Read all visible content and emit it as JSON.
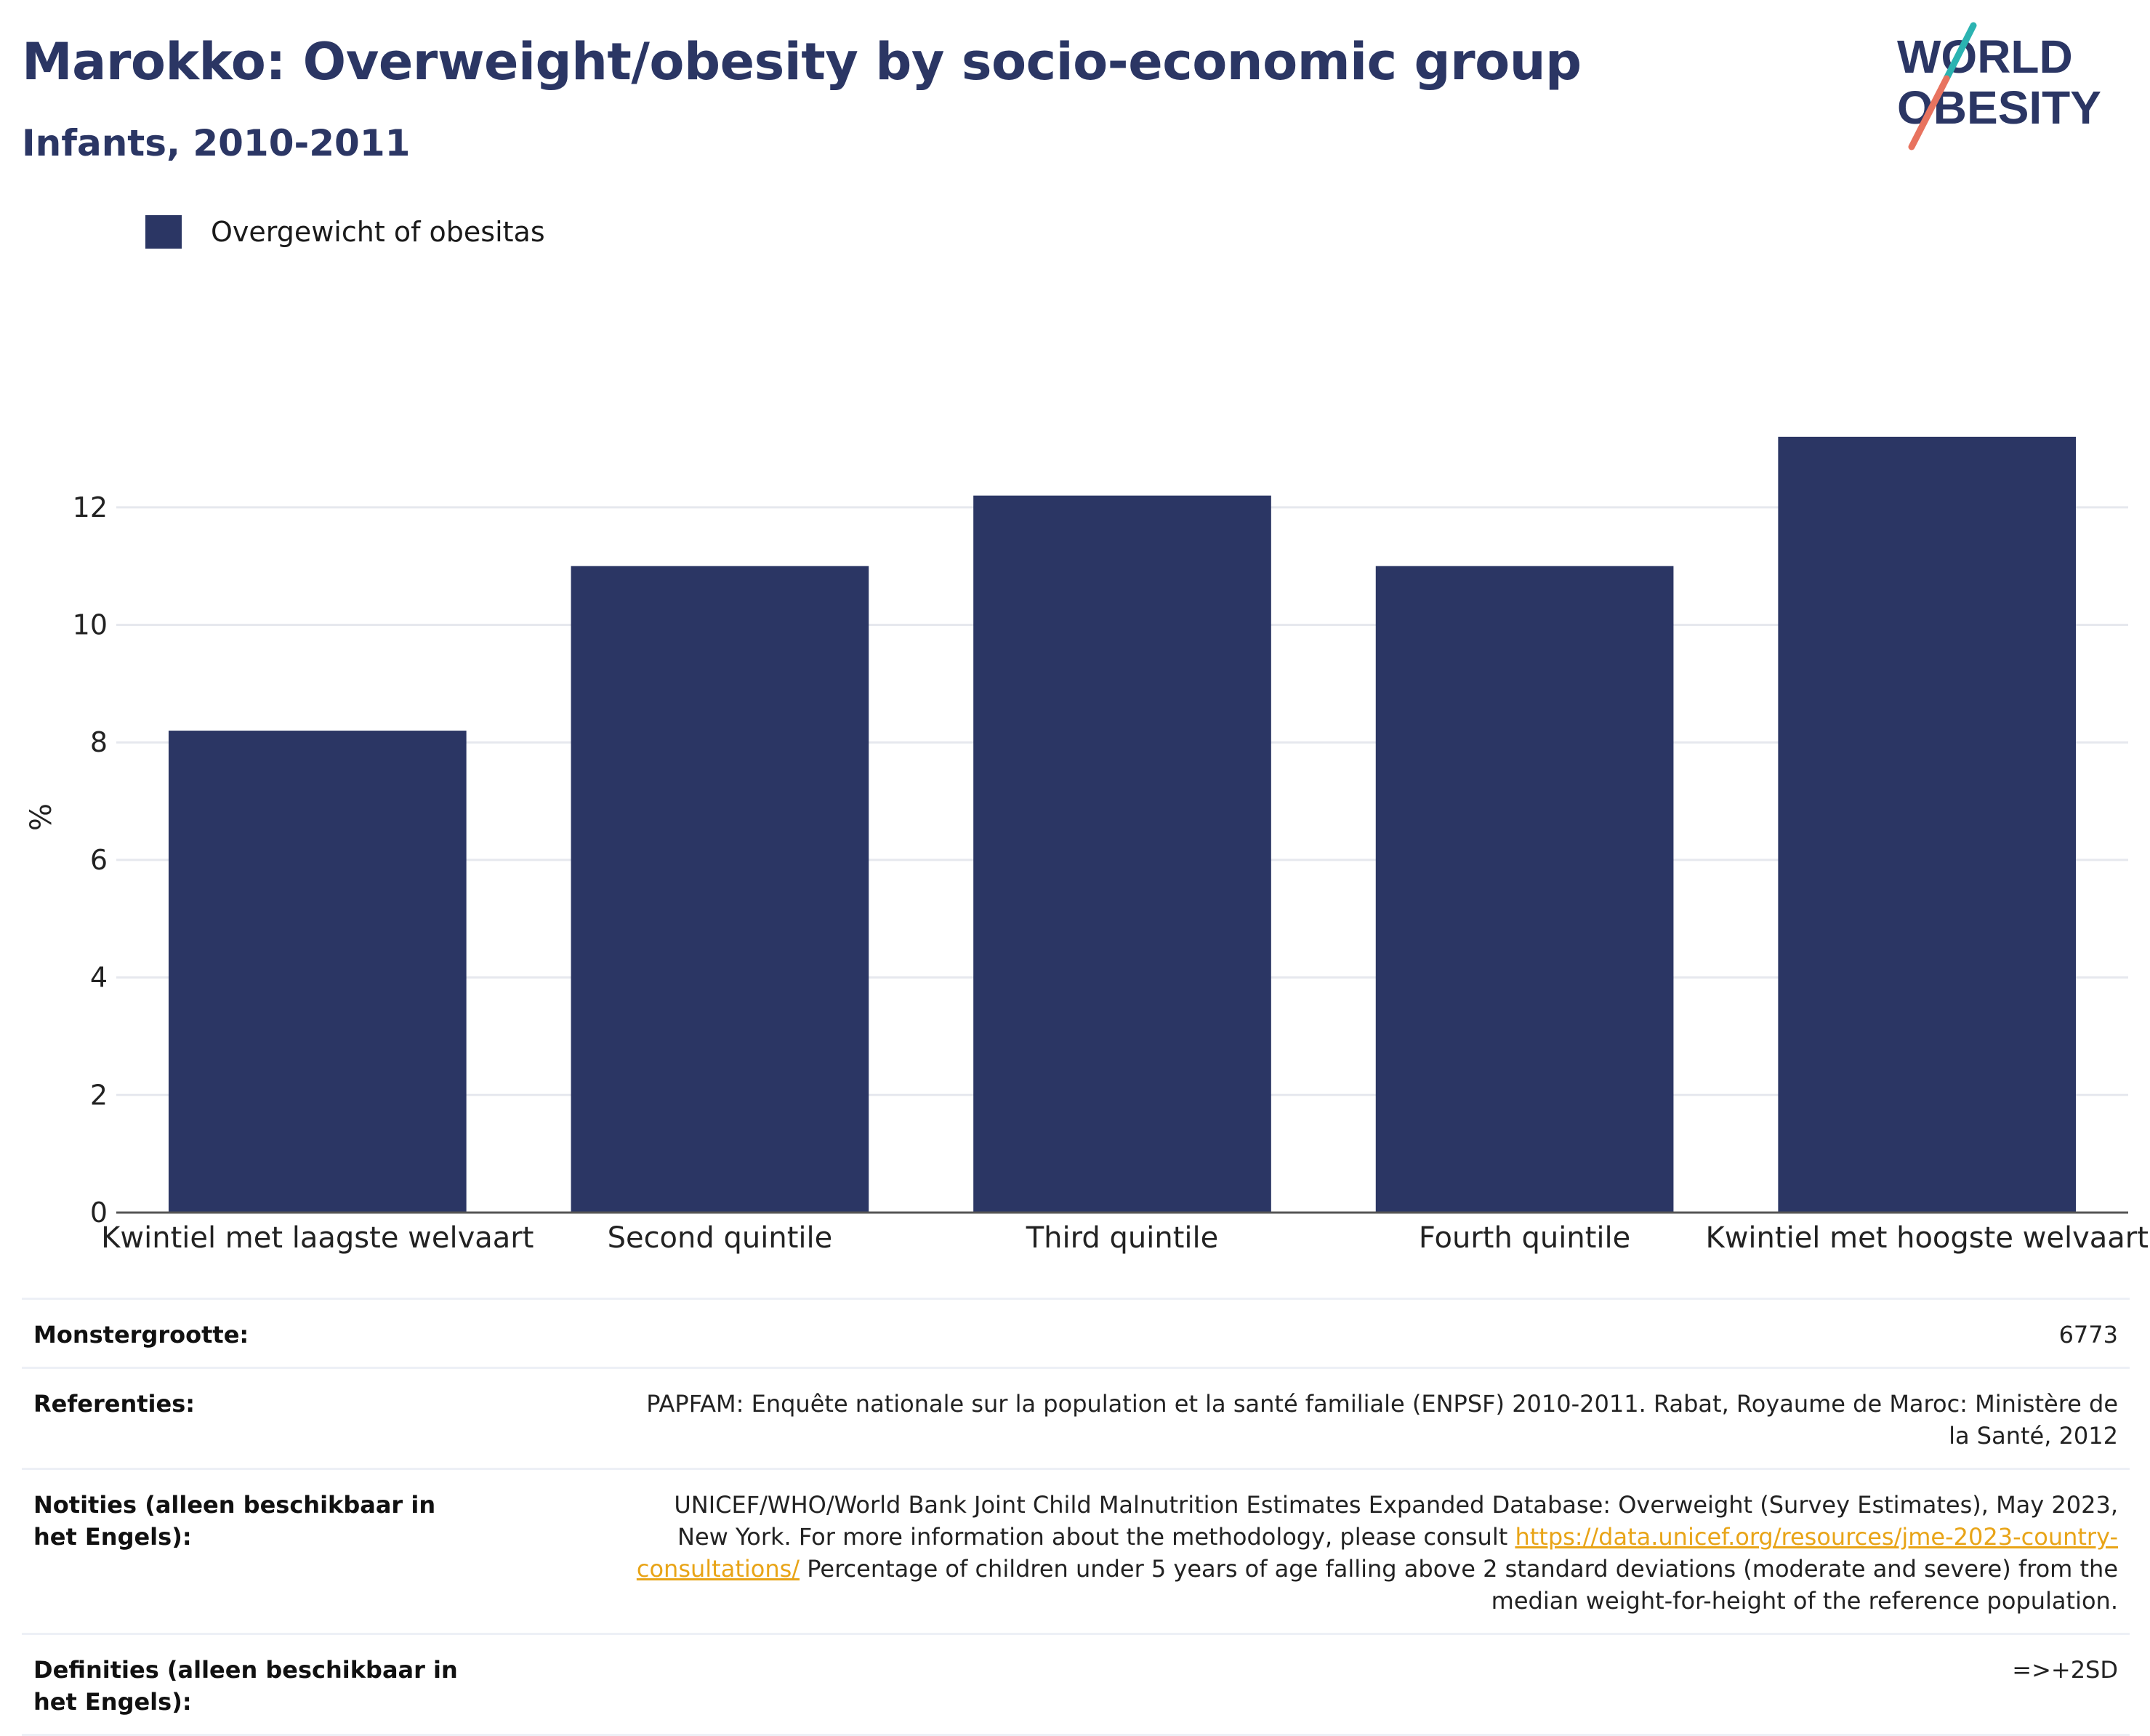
{
  "header": {
    "title": "Marokko: Overweight/obesity by socio-economic group",
    "subtitle": "Infants, 2010-2011"
  },
  "logo": {
    "line1": "WORLD",
    "line2": "OBESITY",
    "colors": {
      "text": "#2b3664",
      "teal": "#2bb3b1",
      "coral": "#e8735f"
    }
  },
  "colors": {
    "bar": "#2b3664",
    "grid": "#e6e8ee",
    "axis": "#555555",
    "link": "#e8a417",
    "title": "#2b3664"
  },
  "chart_data": {
    "type": "bar",
    "title": "Marokko: Overweight/obesity by socio-economic group",
    "subtitle": "Infants, 2010-2011",
    "xlabel": "",
    "ylabel": "%",
    "ylim": [
      0,
      14.2
    ],
    "yticks": [
      0,
      2,
      4,
      6,
      8,
      10,
      12
    ],
    "grid": true,
    "legend_position": "top-left",
    "categories": [
      "Kwintiel met laagste welvaart",
      "Second quintile",
      "Third quintile",
      "Fourth quintile",
      "Kwintiel met hoogste welvaart"
    ],
    "series": [
      {
        "name": "Overgewicht of obesitas",
        "values": [
          8.2,
          11.0,
          12.2,
          11.0,
          13.2
        ]
      }
    ]
  },
  "meta": {
    "rows": [
      {
        "label": "Monstergrootte:",
        "value": "6773"
      },
      {
        "label": "Referenties:",
        "value": "PAPFAM: Enquête nationale sur la population et la santé familiale (ENPSF) 2010-2011. Rabat, Royaume de Maroc: Ministère de la Santé, 2012"
      },
      {
        "label": "Notities (alleen beschikbaar in het Engels):",
        "value_pre": "UNICEF/WHO/World Bank Joint Child Malnutrition Estimates Expanded Database: Overweight (Survey Estimates), May 2023, New York. For more information about the methodology, please consult ",
        "link": "https://data.unicef.org/resources/jme-2023-country-consultations/",
        "value_post": " Percentage of children under 5 years of age falling above 2 standard deviations (moderate and severe) from the median weight-for-height of the reference population."
      },
      {
        "label": "Definities (alleen beschikbaar in het Engels):",
        "value": "=>+2SD"
      }
    ]
  }
}
